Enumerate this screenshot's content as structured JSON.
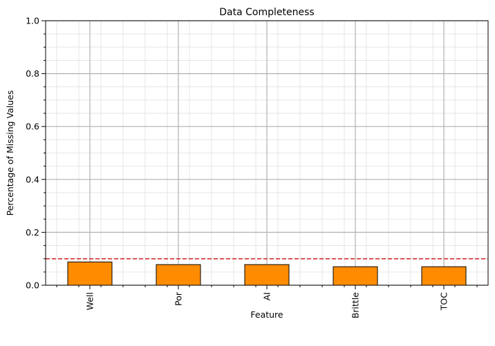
{
  "chart_data": {
    "type": "bar",
    "title": "Data Completeness",
    "xlabel": "Feature",
    "ylabel": "Percentage of Missing Values",
    "categories": [
      "Well",
      "Por",
      "AI",
      "Brittle",
      "TOC"
    ],
    "values": [
      0.088,
      0.078,
      0.078,
      0.07,
      0.07
    ],
    "ylim": [
      0,
      1.0
    ],
    "yticks": [
      "0.0",
      "0.2",
      "0.4",
      "0.6",
      "0.8",
      "1.0"
    ],
    "threshold": 0.1,
    "grid": true,
    "legend": "none",
    "colors": {
      "bar_fill": "#ff8c00",
      "bar_edge": "#000000",
      "threshold_line": "#d62728",
      "major_grid": "#b0b0b0",
      "minor_grid": "#e6e6e6"
    }
  }
}
